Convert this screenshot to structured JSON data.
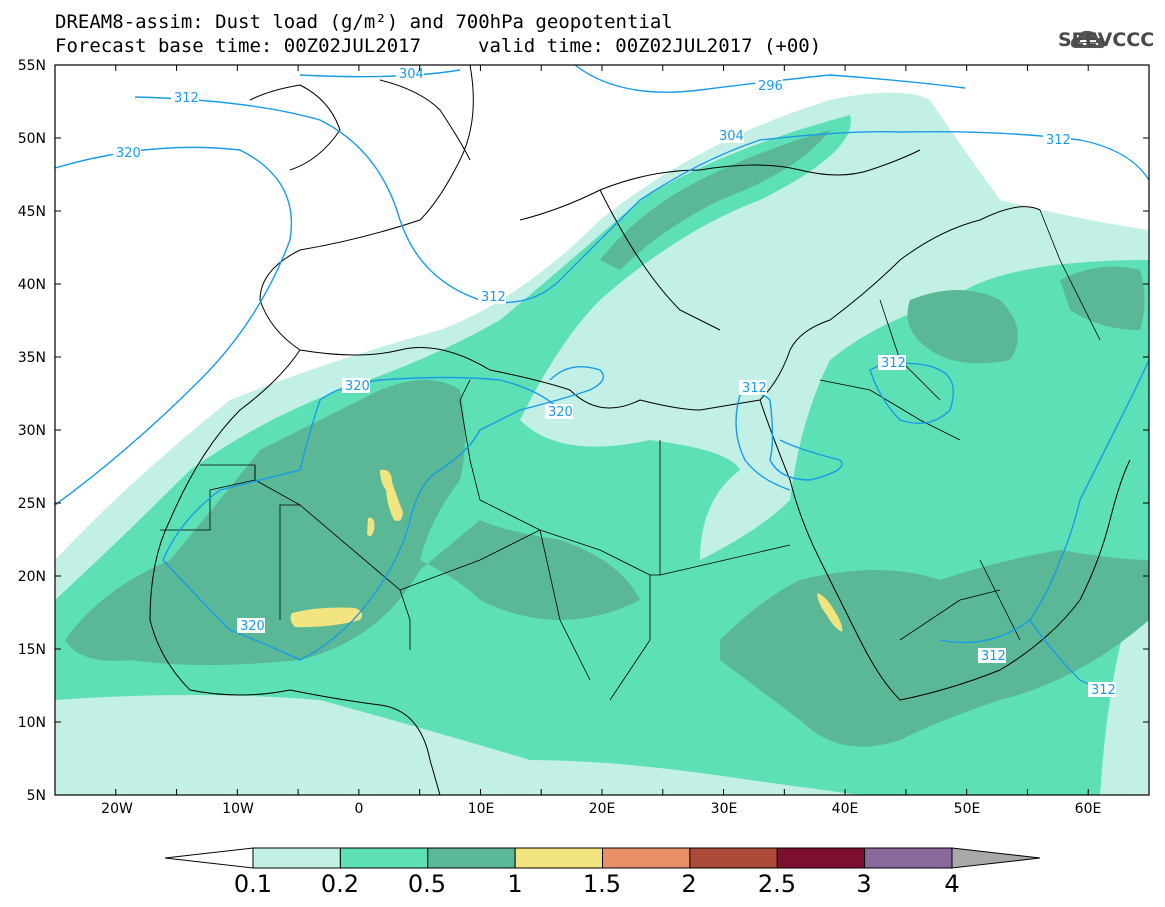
{
  "title": {
    "line1": "DREAM8-assim: Dust load (g/m²) and 700hPa geopotential",
    "line2_left": "Forecast base time: 00Z02JUL2017",
    "line2_right": "valid time: 00Z02JUL2017 (+00)"
  },
  "logo": {
    "text": "SEEVCCC",
    "icon": "cloud-icon"
  },
  "map": {
    "lon_range": [
      -25,
      65
    ],
    "lat_range": [
      5,
      55
    ],
    "lat_labels": [
      "55N",
      "50N",
      "45N",
      "40N",
      "35N",
      "30N",
      "25N",
      "20N",
      "15N",
      "10N",
      "5N"
    ],
    "lon_labels": [
      "20W",
      "10W",
      "0",
      "10E",
      "20E",
      "30E",
      "40E",
      "50E",
      "60E"
    ],
    "contour_labels": [
      "304",
      "296",
      "312",
      "320",
      "304",
      "312",
      "312",
      "320",
      "320",
      "312",
      "312",
      "320",
      "312",
      "312"
    ]
  },
  "colorbar": {
    "labels": [
      "0.1",
      "0.2",
      "0.5",
      "1",
      "1.5",
      "2",
      "2.5",
      "3",
      "4"
    ],
    "colors": [
      "#c2f0e6",
      "#5de0b5",
      "#5ab897",
      "#f2e47e",
      "#e99068",
      "#ad4b3a",
      "#7c0f2d",
      "#8a6a9c"
    ],
    "under_color": "#ffffff",
    "over_color": "#a9a9a9"
  },
  "colors": {
    "contour": "#1a9be6",
    "borders": "#000000"
  }
}
